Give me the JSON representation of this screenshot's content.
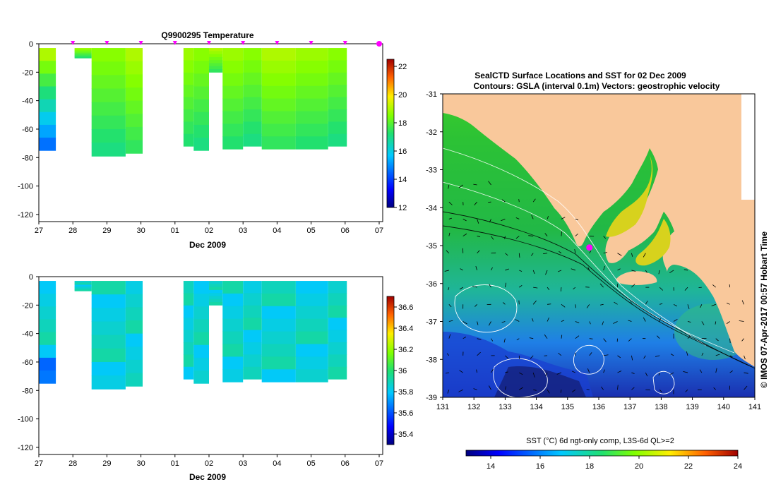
{
  "colors": {
    "land": "#f9c89b",
    "axis": "#000000",
    "marker": "#ff00ff"
  },
  "chart_data": [
    {
      "type": "heatmap",
      "title": "Q9900295  Temperature",
      "xlabel": "Dec 2009",
      "ylabel": "",
      "x_ticks": [
        "27",
        "28",
        "29",
        "30",
        "01",
        "02",
        "03",
        "04",
        "05",
        "06",
        "07"
      ],
      "y_ticks": [
        "0",
        "-20",
        "-40",
        "-60",
        "-80",
        "-100",
        "-120"
      ],
      "ylim": [
        -125,
        0
      ],
      "colorbar_ticks": [
        "22",
        "20",
        "18",
        "16",
        "14",
        "12"
      ],
      "colorbar_range": [
        12,
        22.5
      ],
      "profile_days": [
        1,
        2,
        3,
        4,
        5,
        6,
        7,
        8,
        9,
        10
      ],
      "values_range": [
        14,
        19
      ]
    },
    {
      "type": "heatmap",
      "title": "",
      "xlabel": "Dec 2009",
      "ylabel": "",
      "x_ticks": [
        "27",
        "28",
        "29",
        "30",
        "01",
        "02",
        "03",
        "04",
        "05",
        "06",
        "07"
      ],
      "y_ticks": [
        "0",
        "-20",
        "-40",
        "-60",
        "-80",
        "-100",
        "-120"
      ],
      "ylim": [
        -125,
        0
      ],
      "colorbar_ticks": [
        "36.6",
        "36.4",
        "36.2",
        "36",
        "35.8",
        "35.6",
        "35.4"
      ],
      "colorbar_range": [
        35.3,
        36.7
      ],
      "values_range": [
        35.6,
        35.9
      ]
    },
    {
      "type": "heatmap",
      "title": "SealCTD Surface Locations and SST for 02 Dec 2009",
      "subtitle": "Contours: GSLA (interval 0.1m) Vectors: geostrophic velocity",
      "x_ticks": [
        "131",
        "132",
        "133",
        "134",
        "135",
        "136",
        "137",
        "138",
        "139",
        "140",
        "141"
      ],
      "y_ticks": [
        "-31",
        "-32",
        "-33",
        "-34",
        "-35",
        "-36",
        "-37",
        "-38",
        "-39"
      ],
      "xlim": [
        131,
        141
      ],
      "ylim": [
        -39,
        -31
      ],
      "colorbar_label": "SST (°C) 6d ngt-only comp, L3S-6d QL>=2",
      "colorbar_ticks": [
        "14",
        "16",
        "18",
        "20",
        "22",
        "24"
      ],
      "colorbar_range": [
        13,
        24
      ],
      "seal_location": [
        135.7,
        -35.05
      ],
      "side_label": "© IMOS 07-Apr-2017 00:57 Hobart Time"
    }
  ]
}
